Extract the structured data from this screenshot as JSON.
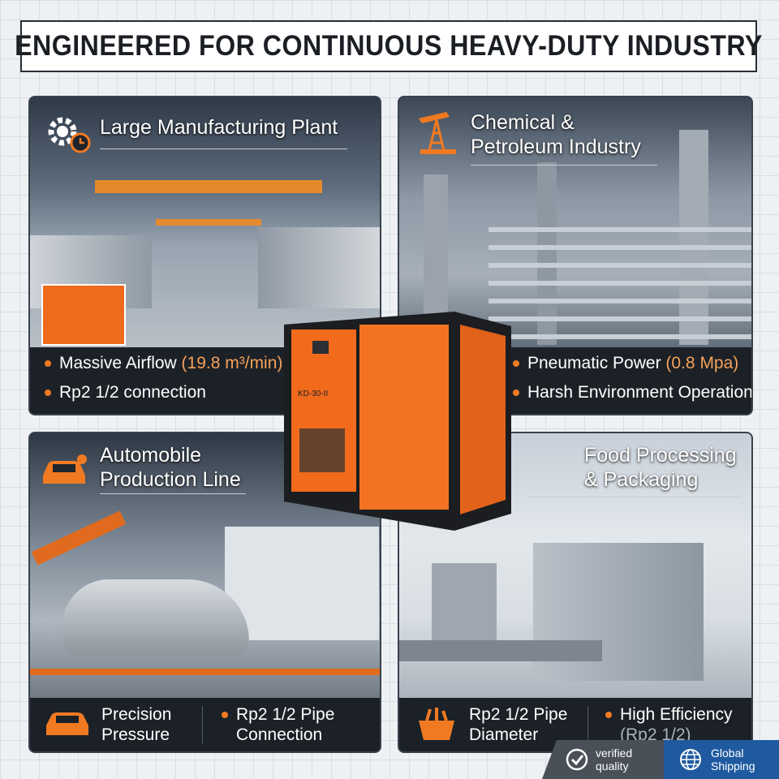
{
  "header": {
    "title": "ENGINEERED FOR CONTINUOUS HEAVY-DUTY INDUSTRY"
  },
  "panels": [
    {
      "title": [
        "Large Manufacturing Plant"
      ],
      "bullets": [
        {
          "text": "Massive Airflow ",
          "highlight": "(19.8 m³/min)"
        },
        {
          "text": "Rp2 1/2 connection"
        }
      ]
    },
    {
      "title": [
        "Chemical &",
        "Petroleum Industry"
      ],
      "bullets": [
        {
          "text": "Pneumatic Power ",
          "highlight": "(0.8 Mpa)"
        },
        {
          "text": "Harsh Environment Operation"
        }
      ]
    },
    {
      "title": [
        "Automobile",
        "Production Line"
      ],
      "features": [
        [
          "Precision",
          "Pressure"
        ],
        [
          "Rp2 1/2 Pipe",
          "Connection"
        ]
      ]
    },
    {
      "title": [
        "Food Processing",
        "& Packaging"
      ],
      "features": [
        [
          "Rp2 1/2 Pipe",
          "Diameter"
        ],
        [
          "High Efficiency",
          "(Rp2 1/2)"
        ]
      ]
    }
  ],
  "product": {
    "model": "KD-30-II"
  },
  "badges": [
    [
      "verified",
      "quality"
    ],
    [
      "Global",
      "Shipping"
    ]
  ]
}
